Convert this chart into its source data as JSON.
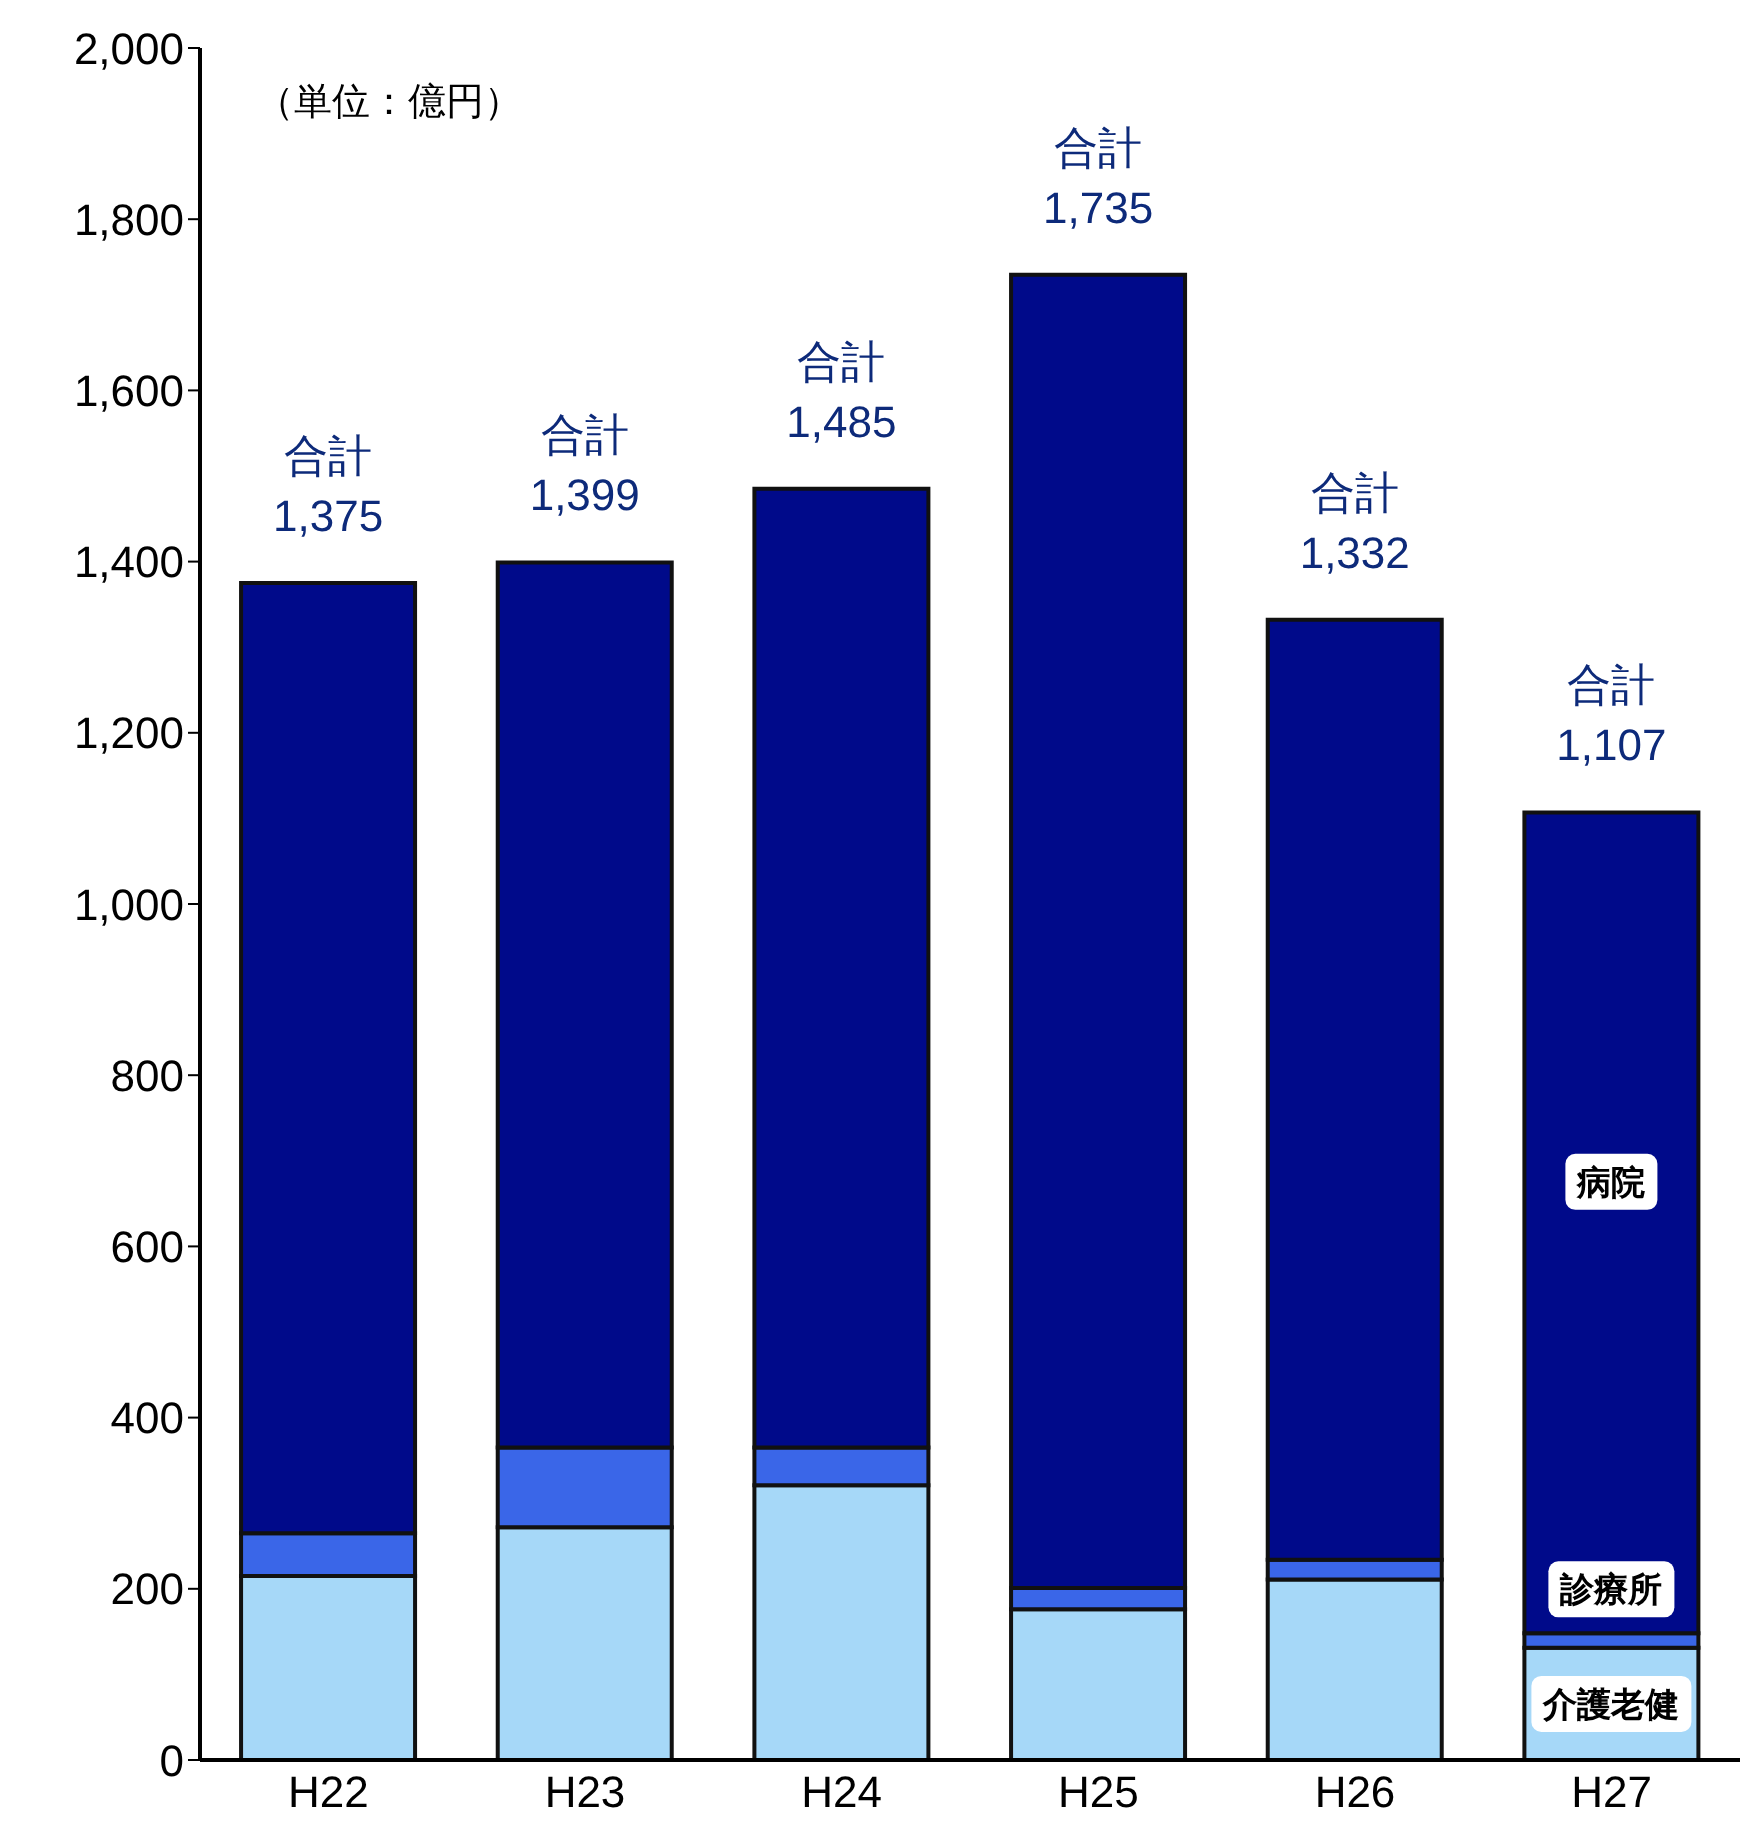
{
  "chart_data": {
    "type": "bar",
    "stacked": true,
    "categories": [
      "H22",
      "H23",
      "H24",
      "H25",
      "H26",
      "H27"
    ],
    "series": [
      {
        "name": "介護老健",
        "color": "#a6d8f8",
        "values": [
          215,
          272,
          321,
          176,
          211,
          131
        ]
      },
      {
        "name": "診療所",
        "color": "#3a66e8",
        "values": [
          50,
          93,
          44,
          25,
          23,
          17
        ]
      },
      {
        "name": "病院",
        "color": "#000a8a",
        "values": [
          1110,
          1034,
          1120,
          1534,
          1098,
          959
        ]
      }
    ],
    "totals": [
      "合計 1,375",
      "合計 1,399",
      "合計 1,485",
      "合計 1,735",
      "合計 1,332",
      "合計 1,107"
    ],
    "ylim": [
      0,
      2000
    ],
    "yticks": [
      0,
      200,
      400,
      600,
      800,
      {
        "value": 1000,
        "label": "1,000"
      },
      {
        "value": 1200,
        "label": "1,200"
      },
      {
        "value": 1400,
        "label": "1,400"
      },
      {
        "value": 1600,
        "label": "1,600"
      },
      {
        "value": 1800,
        "label": "1,800"
      },
      {
        "value": 2000,
        "label": "2,000"
      }
    ],
    "annotations": [
      "（単位：億円）"
    ],
    "grid": false,
    "legend": false
  }
}
